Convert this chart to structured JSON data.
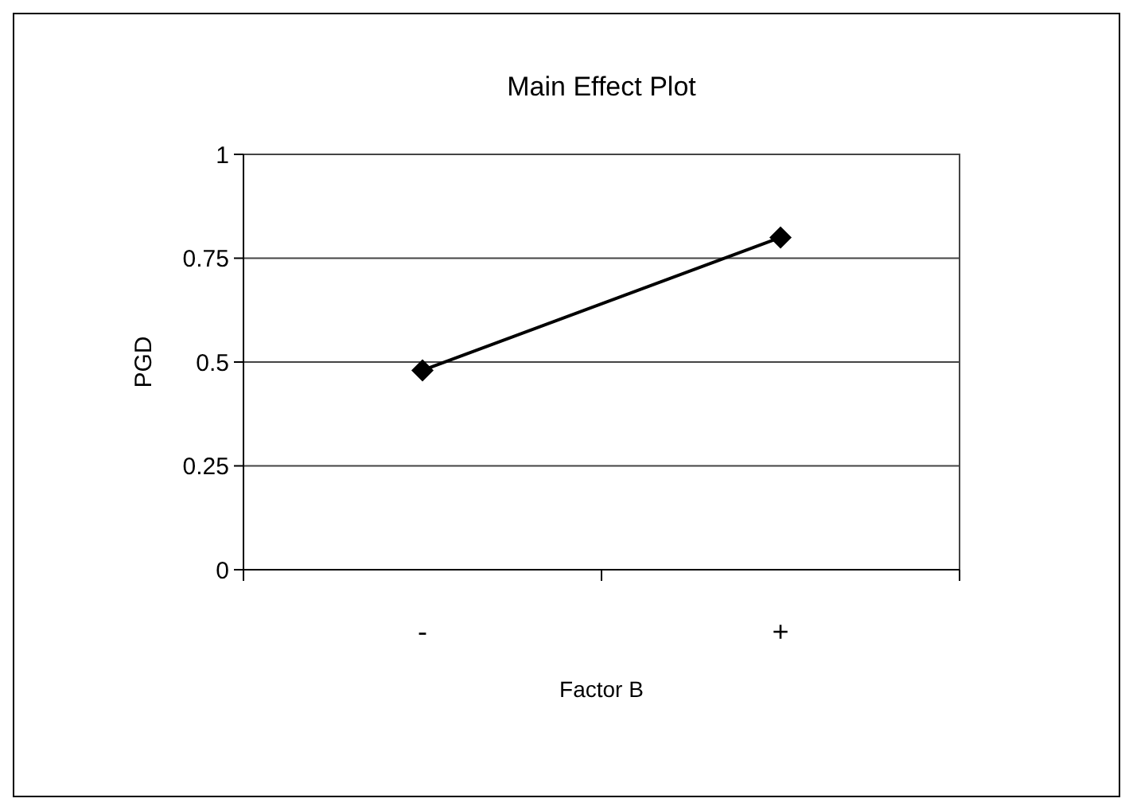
{
  "chart_data": {
    "type": "line",
    "title": "Main Effect Plot",
    "xlabel": "Factor B",
    "ylabel": "PGD",
    "categories": [
      "-",
      "+"
    ],
    "series": [
      {
        "color": "#000000",
        "values": [
          0.48,
          0.8
        ]
      }
    ],
    "ylim": [
      0,
      1
    ],
    "yticks": [
      0,
      0.25,
      0.5,
      0.75,
      1
    ],
    "grid": "y",
    "marker": "diamond",
    "line_style": "solid"
  }
}
